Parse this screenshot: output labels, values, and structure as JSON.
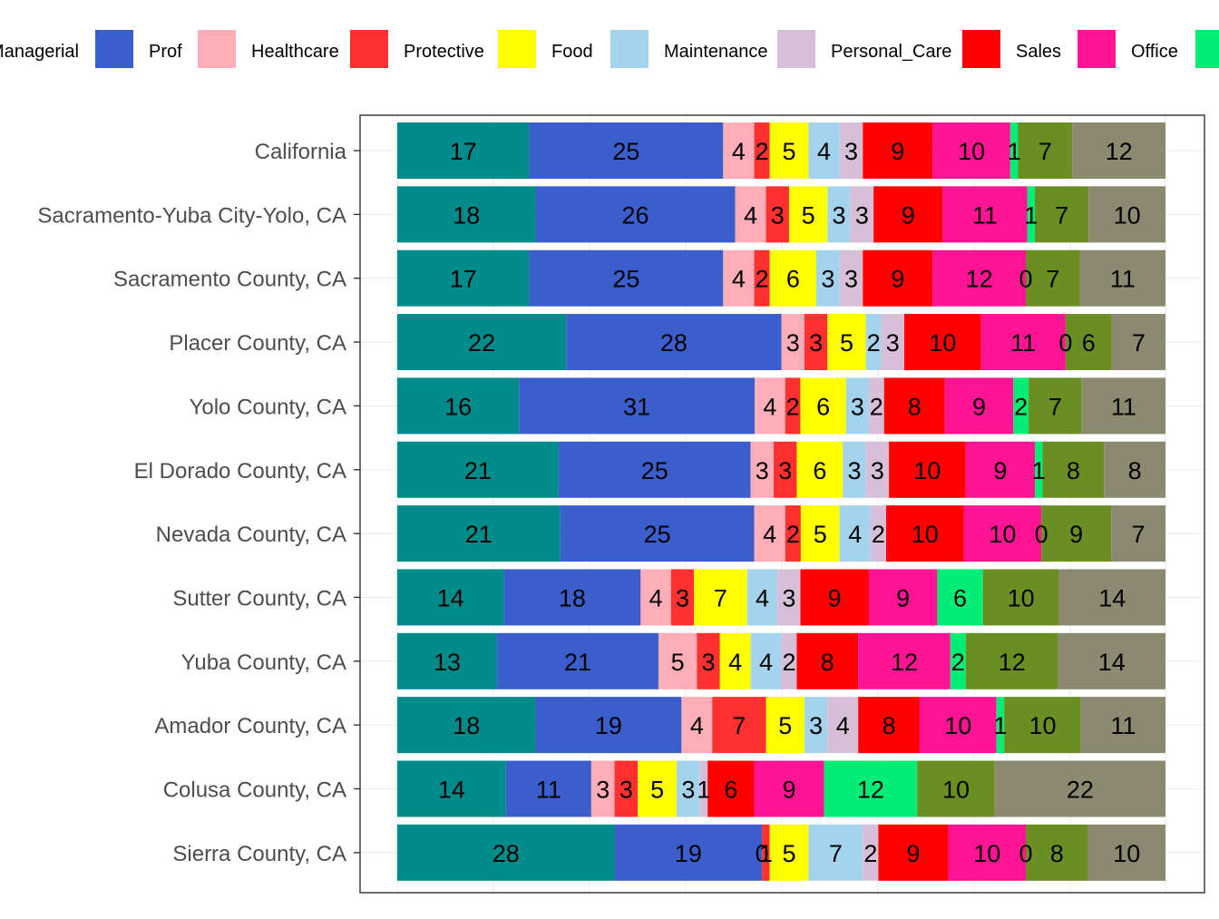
{
  "chart_data": {
    "type": "bar",
    "orientation": "horizontal",
    "stacked": true,
    "grid": true,
    "legend_position": "top",
    "categories": [
      "California",
      "Sacramento-Yuba City-Yolo, CA",
      "Sacramento County, CA",
      "Placer County, CA",
      "Yolo County, CA",
      "El Dorado County, CA",
      "Nevada County, CA",
      "Sutter County, CA",
      "Yuba County, CA",
      "Amador County, CA",
      "Colusa County, CA",
      "Sierra County, CA"
    ],
    "series": [
      {
        "name": "Managerial",
        "color": "#008B8B",
        "values": [
          17,
          18,
          17,
          22,
          16,
          21,
          21,
          14,
          13,
          18,
          14,
          28
        ]
      },
      {
        "name": "Prof",
        "color": "#3A5FCD",
        "values": [
          25,
          26,
          25,
          28,
          31,
          25,
          25,
          18,
          21,
          19,
          11,
          19
        ]
      },
      {
        "name": "Healthcare",
        "color": "#FFAEB9",
        "values": [
          4,
          4,
          4,
          3,
          4,
          3,
          4,
          4,
          5,
          4,
          3,
          0
        ]
      },
      {
        "name": "Protective",
        "color": "#FF3030",
        "values": [
          2,
          3,
          2,
          3,
          2,
          3,
          2,
          3,
          3,
          7,
          3,
          1
        ]
      },
      {
        "name": "Food",
        "color": "#FFFF00",
        "values": [
          5,
          5,
          6,
          5,
          6,
          6,
          5,
          7,
          4,
          5,
          5,
          5
        ]
      },
      {
        "name": "Maintenance",
        "color": "#A4D3EE",
        "values": [
          4,
          3,
          3,
          2,
          3,
          3,
          4,
          4,
          4,
          3,
          3,
          7
        ]
      },
      {
        "name": "Personal_Care",
        "color": "#D8BFD8",
        "values": [
          3,
          3,
          3,
          3,
          2,
          3,
          2,
          3,
          2,
          4,
          1,
          2
        ]
      },
      {
        "name": "Sales",
        "color": "#FF0000",
        "values": [
          9,
          9,
          9,
          10,
          8,
          10,
          10,
          9,
          8,
          8,
          6,
          9
        ]
      },
      {
        "name": "Office",
        "color": "#FF1493",
        "values": [
          10,
          11,
          12,
          11,
          9,
          9,
          10,
          9,
          12,
          10,
          9,
          10
        ]
      },
      {
        "name": "",
        "color": "#00EE76",
        "values": [
          1,
          1,
          0,
          0,
          2,
          1,
          0,
          6,
          2,
          1,
          12,
          0
        ]
      },
      {
        "name": "",
        "color": "#6B8E23",
        "values": [
          7,
          7,
          7,
          6,
          7,
          8,
          9,
          10,
          12,
          10,
          10,
          8
        ]
      },
      {
        "name": "",
        "color": "#8B8970",
        "values": [
          12,
          10,
          11,
          7,
          11,
          8,
          7,
          14,
          14,
          11,
          22,
          10
        ]
      }
    ],
    "title": "",
    "xlabel": "",
    "ylabel": "",
    "xlim": [
      0,
      100
    ]
  }
}
